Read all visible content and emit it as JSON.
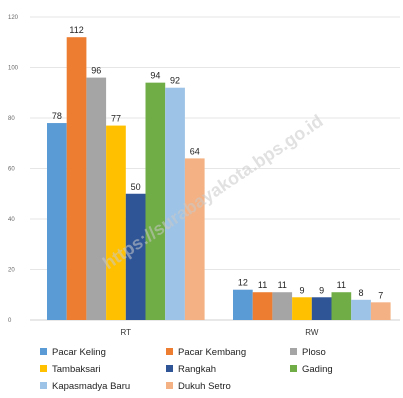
{
  "watermark": "https://surabayakota.bps.go.id",
  "chart_data": {
    "type": "bar",
    "categories": [
      "RT",
      "RW"
    ],
    "ylim": [
      0,
      120
    ],
    "yticks": [
      0,
      20,
      40,
      60,
      80,
      100,
      120
    ],
    "grid": true,
    "legend_position": "bottom",
    "series": [
      {
        "name": "Pacar Keling",
        "color": "#5b9bd5",
        "values": [
          78,
          12
        ]
      },
      {
        "name": "Pacar Kembang",
        "color": "#ed7d31",
        "values": [
          112,
          11
        ]
      },
      {
        "name": "Ploso",
        "color": "#a5a5a5",
        "values": [
          96,
          11
        ]
      },
      {
        "name": "Tambaksari",
        "color": "#ffc000",
        "values": [
          77,
          9
        ]
      },
      {
        "name": "Rangkah",
        "color": "#2f5597",
        "values": [
          50,
          9
        ]
      },
      {
        "name": "Gading",
        "color": "#70ad47",
        "values": [
          94,
          11
        ]
      },
      {
        "name": "Kapasmadya Baru",
        "color": "#9dc3e6",
        "values": [
          92,
          8
        ]
      },
      {
        "name": "Dukuh Setro",
        "color": "#f4b183",
        "values": [
          64,
          7
        ]
      }
    ]
  }
}
